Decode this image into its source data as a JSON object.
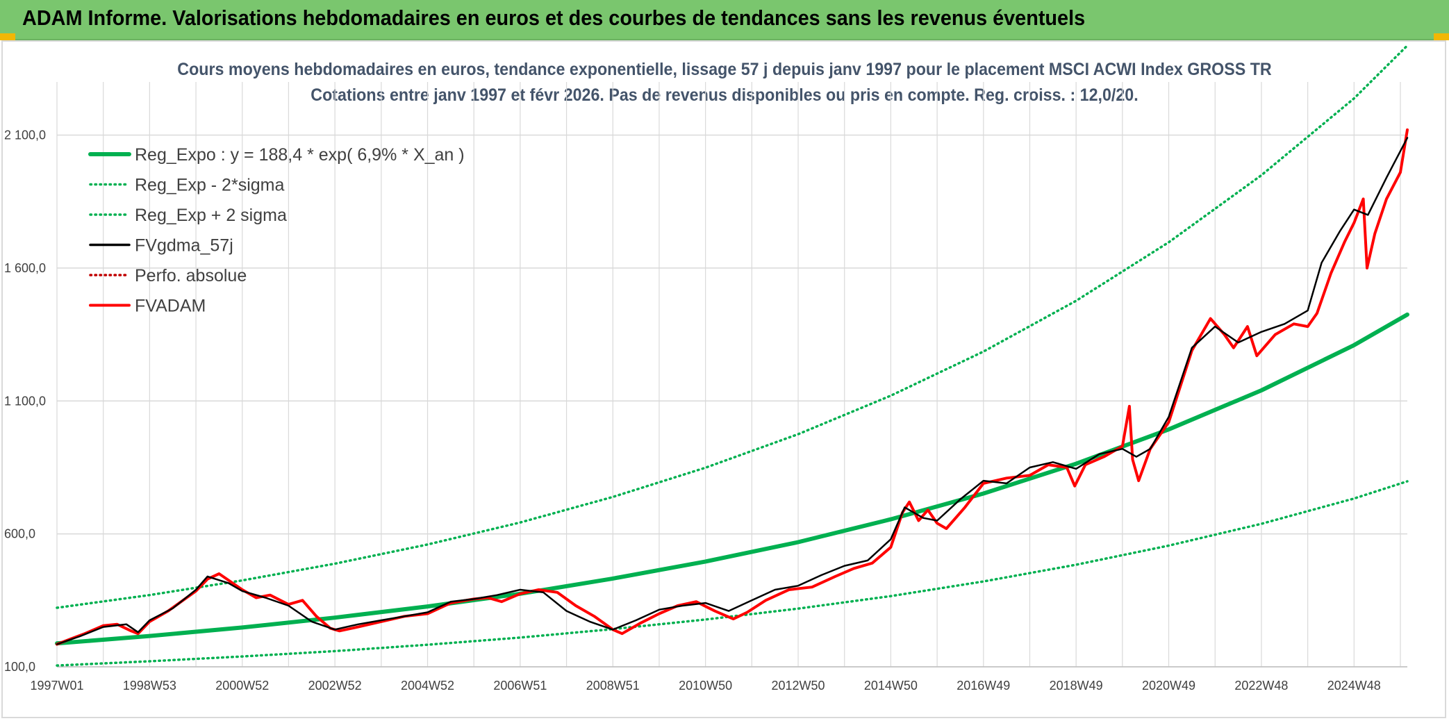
{
  "banner": {
    "title": "ADAM Informe. Valorisations hebdomadaires en euros et des courbes de tendances sans les revenus éventuels"
  },
  "colors": {
    "banner_bg": "#7ac66e",
    "trend": "#00b050",
    "smooth": "#000000",
    "price": "#ff0000",
    "grid": "#d9d9d9",
    "title_text": "#44546a"
  },
  "chart_data": {
    "type": "line",
    "title": "Cours moyens hebdomadaires en euros, tendance exponentielle, lissage 57 j depuis janv 1997 pour le placement MSCI ACWI Index GROSS TR",
    "subtitle": "Cotations entre janv 1997 et févr 2026. Pas de revenus disponibles ou pris en compte. Reg. croiss. : 12,0/20.",
    "xlabel": "",
    "ylabel": "",
    "x_unit": "year",
    "xlim": [
      1997.0,
      2026.15
    ],
    "ylim": [
      100,
      2300
    ],
    "y_ticks": [
      {
        "value": 100,
        "label": "100,0"
      },
      {
        "value": 600,
        "label": "600,0"
      },
      {
        "value": 1100,
        "label": "1 100,0"
      },
      {
        "value": 1600,
        "label": "1 600,0"
      },
      {
        "value": 2100,
        "label": "2 100,0"
      }
    ],
    "x_ticks": [
      {
        "value": 1997.0,
        "label": "1997W01"
      },
      {
        "value": 1999.0,
        "label": "1998W53"
      },
      {
        "value": 2001.0,
        "label": "2000W52"
      },
      {
        "value": 2003.0,
        "label": "2002W52"
      },
      {
        "value": 2005.0,
        "label": "2004W52"
      },
      {
        "value": 2007.0,
        "label": "2006W51"
      },
      {
        "value": 2009.0,
        "label": "2008W51"
      },
      {
        "value": 2011.0,
        "label": "2010W50"
      },
      {
        "value": 2013.0,
        "label": "2012W50"
      },
      {
        "value": 2015.0,
        "label": "2014W50"
      },
      {
        "value": 2017.0,
        "label": "2016W49"
      },
      {
        "value": 2019.0,
        "label": "2018W49"
      },
      {
        "value": 2021.0,
        "label": "2020W49"
      },
      {
        "value": 2023.0,
        "label": "2022W48"
      },
      {
        "value": 2025.0,
        "label": "2024W48"
      }
    ],
    "vertical_grid_step_years": 1,
    "grid": true,
    "legend_position": "top-left",
    "series": [
      {
        "name": "Reg_Expo : y = 188,4 * exp( 6,9% *  X_an )",
        "style": "solid-thick",
        "color": "#00b050",
        "x": [
          1997,
          1999,
          2001,
          2003,
          2005,
          2007,
          2009,
          2011,
          2013,
          2015,
          2017,
          2019,
          2021,
          2023,
          2025,
          2026.15
        ],
        "values": [
          188,
          216,
          248,
          285,
          327,
          375,
          432,
          496,
          569,
          655,
          752,
          864,
          993,
          1140,
          1310,
          1425
        ]
      },
      {
        "name": "Reg_Exp - 2*sigma",
        "style": "dotted",
        "color": "#00b050",
        "x": [
          1997,
          1999,
          2001,
          2003,
          2005,
          2007,
          2009,
          2011,
          2013,
          2015,
          2017,
          2019,
          2021,
          2023,
          2025,
          2026.15
        ],
        "values": [
          105,
          121,
          139,
          159,
          183,
          210,
          242,
          278,
          319,
          366,
          421,
          484,
          556,
          638,
          733,
          798
        ]
      },
      {
        "name": "Reg_Exp + 2 sigma",
        "style": "dotted",
        "color": "#00b050",
        "x": [
          1997,
          1999,
          2001,
          2003,
          2005,
          2007,
          2009,
          2011,
          2013,
          2015,
          2017,
          2019,
          2021,
          2023,
          2025,
          2026.15
        ],
        "values": [
          322,
          370,
          425,
          488,
          560,
          643,
          739,
          849,
          975,
          1120,
          1286,
          1477,
          1697,
          1949,
          2238,
          2437
        ]
      },
      {
        "name": "FVgdma_57j",
        "style": "solid",
        "color": "#000000",
        "x": [
          1997.0,
          1997.5,
          1998.0,
          1998.5,
          1998.75,
          1999.0,
          1999.5,
          2000.0,
          2000.25,
          2000.7,
          2001.0,
          2001.5,
          2002.0,
          2002.5,
          2003.0,
          2003.5,
          2004.0,
          2004.5,
          2005.0,
          2005.5,
          2006.0,
          2006.5,
          2007.0,
          2007.5,
          2008.0,
          2008.5,
          2009.0,
          2009.5,
          2010.0,
          2010.5,
          2011.0,
          2011.5,
          2012.0,
          2012.5,
          2013.0,
          2013.5,
          2014.0,
          2014.5,
          2015.0,
          2015.3,
          2015.7,
          2016.0,
          2016.5,
          2017.0,
          2017.5,
          2018.0,
          2018.5,
          2019.0,
          2019.5,
          2020.0,
          2020.3,
          2020.6,
          2021.0,
          2021.5,
          2022.0,
          2022.5,
          2023.0,
          2023.5,
          2024.0,
          2024.3,
          2024.7,
          2025.0,
          2025.3,
          2025.7,
          2026.15
        ],
        "values": [
          185,
          215,
          250,
          260,
          230,
          275,
          320,
          390,
          440,
          415,
          385,
          360,
          330,
          270,
          240,
          260,
          275,
          290,
          305,
          345,
          355,
          370,
          390,
          380,
          310,
          270,
          240,
          275,
          315,
          330,
          340,
          310,
          350,
          390,
          405,
          445,
          480,
          500,
          580,
          700,
          660,
          650,
          730,
          800,
          790,
          850,
          870,
          845,
          900,
          920,
          890,
          920,
          1040,
          1300,
          1380,
          1320,
          1360,
          1390,
          1440,
          1620,
          1740,
          1820,
          1800,
          1940,
          2090
        ]
      },
      {
        "name": "Perfo. absolue",
        "style": "dotted",
        "color": "#c00000",
        "x": [],
        "values": []
      },
      {
        "name": "FVADAM",
        "style": "solid-thick",
        "color": "#ff0000",
        "x": [
          1997.0,
          1997.3,
          1997.6,
          1998.0,
          1998.3,
          1998.6,
          1998.75,
          1999.0,
          1999.4,
          1999.8,
          2000.0,
          2000.25,
          2000.5,
          2000.75,
          2001.0,
          2001.3,
          2001.6,
          2002.0,
          2002.3,
          2002.6,
          2002.9,
          2003.1,
          2003.5,
          2004.0,
          2004.5,
          2005.0,
          2005.5,
          2006.0,
          2006.3,
          2006.6,
          2007.0,
          2007.4,
          2007.8,
          2008.2,
          2008.6,
          2009.0,
          2009.2,
          2009.6,
          2010.0,
          2010.4,
          2010.8,
          2011.2,
          2011.6,
          2011.9,
          2012.3,
          2012.8,
          2013.3,
          2013.8,
          2014.2,
          2014.6,
          2015.0,
          2015.25,
          2015.4,
          2015.6,
          2015.8,
          2016.0,
          2016.2,
          2016.6,
          2017.0,
          2017.5,
          2018.0,
          2018.4,
          2018.8,
          2018.97,
          2019.2,
          2019.6,
          2020.0,
          2020.15,
          2020.22,
          2020.35,
          2020.6,
          2021.0,
          2021.5,
          2021.9,
          2022.2,
          2022.4,
          2022.7,
          2022.9,
          2023.3,
          2023.7,
          2024.0,
          2024.2,
          2024.5,
          2024.8,
          2025.0,
          2025.2,
          2025.28,
          2025.45,
          2025.7,
          2026.0,
          2026.15
        ],
        "values": [
          185,
          205,
          225,
          255,
          260,
          235,
          225,
          270,
          310,
          360,
          385,
          430,
          450,
          420,
          390,
          360,
          370,
          335,
          350,
          290,
          245,
          235,
          250,
          270,
          290,
          300,
          340,
          355,
          360,
          345,
          375,
          390,
          380,
          330,
          290,
          240,
          225,
          265,
          300,
          330,
          345,
          310,
          280,
          305,
          350,
          390,
          400,
          440,
          470,
          490,
          550,
          680,
          720,
          650,
          690,
          640,
          620,
          700,
          790,
          810,
          820,
          860,
          850,
          780,
          860,
          890,
          930,
          1080,
          880,
          800,
          920,
          1020,
          1290,
          1410,
          1350,
          1300,
          1380,
          1270,
          1350,
          1390,
          1380,
          1430,
          1580,
          1700,
          1770,
          1860,
          1600,
          1730,
          1860,
          1960,
          2120
        ]
      }
    ]
  }
}
